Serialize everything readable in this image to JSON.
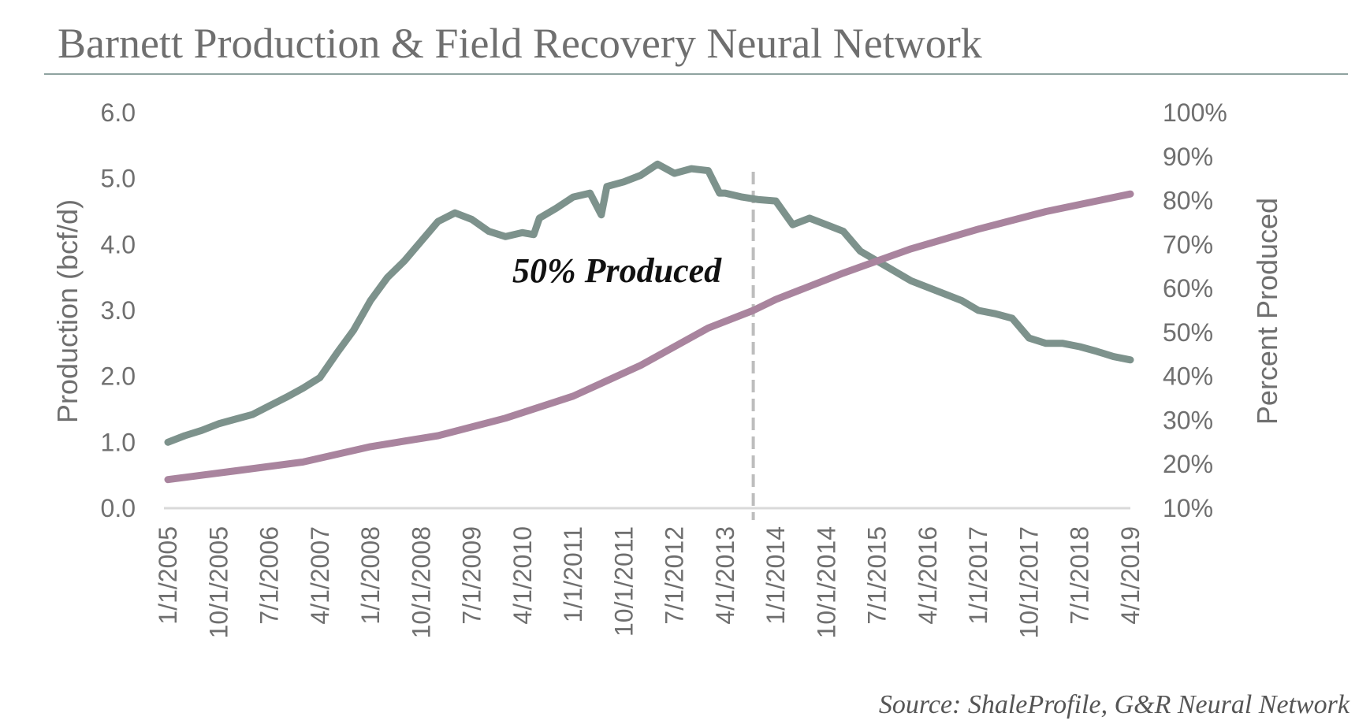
{
  "chart_data": {
    "type": "line",
    "title": "Barnett Production & Field Recovery Neural Network",
    "source": "Source: ShaleProfile, G&R Neural Network",
    "annotation": {
      "text": "50% Produced",
      "x": "1/1/2013+"
    },
    "ylabel": "Production (bcf/d)",
    "ylabel_right": "Percent Produced",
    "ylim": [
      0,
      6
    ],
    "ylim_right": [
      10,
      100
    ],
    "y_ticks": [
      "0.0",
      "1.0",
      "2.0",
      "3.0",
      "4.0",
      "5.0",
      "6.0"
    ],
    "y_ticks_right": [
      "10%",
      "20%",
      "30%",
      "40%",
      "50%",
      "60%",
      "70%",
      "80%",
      "90%",
      "100%"
    ],
    "x_ticks": [
      "1/1/2005",
      "10/1/2005",
      "7/1/2006",
      "4/1/2007",
      "1/1/2008",
      "10/1/2008",
      "7/1/2009",
      "4/1/2010",
      "1/1/2011",
      "10/1/2011",
      "7/1/2012",
      "4/1/2013",
      "1/1/2014",
      "10/1/2014",
      "7/1/2015",
      "4/1/2016",
      "1/1/2017",
      "10/1/2017",
      "7/1/2018",
      "4/1/2019"
    ],
    "x_range": [
      "1/1/2005",
      "4/1/2019"
    ],
    "vline_at": "9/1/2013",
    "grid": false,
    "series": [
      {
        "name": "Production",
        "axis": "left",
        "color": "#7d928c",
        "points": [
          [
            "1/1/2005",
            1.0
          ],
          [
            "4/1/2005",
            1.1
          ],
          [
            "7/1/2005",
            1.18
          ],
          [
            "10/1/2005",
            1.28
          ],
          [
            "1/1/2006",
            1.35
          ],
          [
            "4/1/2006",
            1.42
          ],
          [
            "7/1/2006",
            1.55
          ],
          [
            "10/1/2006",
            1.68
          ],
          [
            "1/1/2007",
            1.82
          ],
          [
            "4/1/2007",
            1.98
          ],
          [
            "7/1/2007",
            2.35
          ],
          [
            "10/1/2007",
            2.7
          ],
          [
            "1/1/2008",
            3.15
          ],
          [
            "4/1/2008",
            3.5
          ],
          [
            "7/1/2008",
            3.75
          ],
          [
            "10/1/2008",
            4.05
          ],
          [
            "1/1/2009",
            4.35
          ],
          [
            "4/1/2009",
            4.48
          ],
          [
            "7/1/2009",
            4.38
          ],
          [
            "10/1/2009",
            4.2
          ],
          [
            "1/1/2010",
            4.12
          ],
          [
            "4/1/2010",
            4.18
          ],
          [
            "6/1/2010",
            4.15
          ],
          [
            "7/1/2010",
            4.4
          ],
          [
            "10/1/2010",
            4.55
          ],
          [
            "1/1/2011",
            4.72
          ],
          [
            "4/1/2011",
            4.78
          ],
          [
            "6/1/2011",
            4.45
          ],
          [
            "7/1/2011",
            4.88
          ],
          [
            "10/1/2011",
            4.95
          ],
          [
            "1/1/2012",
            5.05
          ],
          [
            "4/1/2012",
            5.22
          ],
          [
            "7/1/2012",
            5.08
          ],
          [
            "10/1/2012",
            5.15
          ],
          [
            "1/1/2013",
            5.12
          ],
          [
            "3/1/2013",
            4.78
          ],
          [
            "4/1/2013",
            4.78
          ],
          [
            "7/1/2013",
            4.72
          ],
          [
            "10/1/2013",
            4.68
          ],
          [
            "1/1/2014",
            4.66
          ],
          [
            "4/1/2014",
            4.3
          ],
          [
            "7/1/2014",
            4.4
          ],
          [
            "10/1/2014",
            4.3
          ],
          [
            "1/1/2015",
            4.2
          ],
          [
            "4/1/2015",
            3.9
          ],
          [
            "7/1/2015",
            3.75
          ],
          [
            "10/1/2015",
            3.6
          ],
          [
            "1/1/2016",
            3.45
          ],
          [
            "4/1/2016",
            3.35
          ],
          [
            "7/1/2016",
            3.25
          ],
          [
            "10/1/2016",
            3.15
          ],
          [
            "1/1/2017",
            3.0
          ],
          [
            "4/1/2017",
            2.95
          ],
          [
            "7/1/2017",
            2.88
          ],
          [
            "10/1/2017",
            2.58
          ],
          [
            "1/1/2018",
            2.5
          ],
          [
            "4/1/2018",
            2.5
          ],
          [
            "7/1/2018",
            2.45
          ],
          [
            "10/1/2018",
            2.38
          ],
          [
            "1/1/2019",
            2.3
          ],
          [
            "4/1/2019",
            2.25
          ]
        ]
      },
      {
        "name": "Percent Produced",
        "axis": "right",
        "color": "#a9849e",
        "points": [
          [
            "1/1/2005",
            16.5
          ],
          [
            "1/1/2006",
            18.5
          ],
          [
            "1/1/2007",
            20.5
          ],
          [
            "1/1/2008",
            24.0
          ],
          [
            "1/1/2009",
            26.5
          ],
          [
            "1/1/2010",
            30.5
          ],
          [
            "1/1/2011",
            35.5
          ],
          [
            "1/1/2012",
            42.5
          ],
          [
            "1/1/2013",
            51.0
          ],
          [
            "9/1/2013",
            55.0
          ],
          [
            "1/1/2014",
            57.5
          ],
          [
            "1/1/2015",
            63.5
          ],
          [
            "1/1/2016",
            69.0
          ],
          [
            "1/1/2017",
            73.5
          ],
          [
            "1/1/2018",
            77.5
          ],
          [
            "4/1/2019",
            81.5
          ]
        ]
      }
    ]
  },
  "colors": {
    "production": "#7d928c",
    "percent": "#a9849e",
    "rule": "#8fa3a0",
    "axis": "#d9d9d9",
    "vline": "#bdbdbd"
  }
}
